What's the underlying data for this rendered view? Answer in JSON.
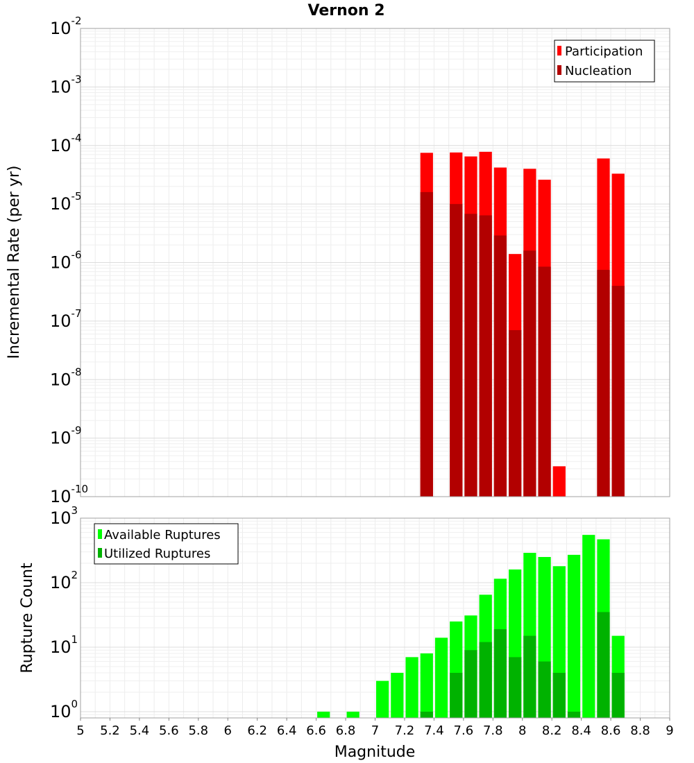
{
  "chart_data": [
    {
      "type": "bar",
      "id": "rate-panel",
      "title": "Vernon 2",
      "xlabel": "",
      "ylabel": "Incremental Rate (per yr)",
      "yscale": "log",
      "ylim": [
        1e-10,
        0.01
      ],
      "xlim": [
        5,
        9
      ],
      "bin_width": 0.1,
      "y_ticks": [
        {
          "base": "10",
          "exp": "-10",
          "value": 1e-10
        },
        {
          "base": "10",
          "exp": "-9",
          "value": 1e-09
        },
        {
          "base": "10",
          "exp": "-8",
          "value": 1e-08
        },
        {
          "base": "10",
          "exp": "-7",
          "value": 1e-07
        },
        {
          "base": "10",
          "exp": "-6",
          "value": 1e-06
        },
        {
          "base": "10",
          "exp": "-5",
          "value": 1e-05
        },
        {
          "base": "10",
          "exp": "-4",
          "value": 0.0001
        },
        {
          "base": "10",
          "exp": "-3",
          "value": 0.001
        },
        {
          "base": "10",
          "exp": "-2",
          "value": 0.01
        }
      ],
      "legend": {
        "placement": "top-right",
        "entries": [
          "Participation",
          "Nucleation"
        ]
      },
      "series": [
        {
          "name": "Participation",
          "color": "#ff0000",
          "x": [
            7.35,
            7.55,
            7.65,
            7.75,
            7.85,
            7.95,
            8.05,
            8.15,
            8.25,
            8.55,
            8.65
          ],
          "values": [
            7.5e-05,
            7.6e-05,
            6.5e-05,
            7.8e-05,
            4.2e-05,
            1.4e-06,
            4e-05,
            2.6e-05,
            3.3e-10,
            6e-05,
            3.3e-05
          ]
        },
        {
          "name": "Nucleation",
          "color": "#b20000",
          "x": [
            7.35,
            7.55,
            7.65,
            7.75,
            7.85,
            7.95,
            8.05,
            8.15,
            8.55,
            8.65
          ],
          "values": [
            1.6e-05,
            1e-05,
            6.8e-06,
            6.4e-06,
            2.9e-06,
            7e-08,
            1.6e-06,
            8.5e-07,
            7.5e-07,
            4e-07
          ]
        }
      ]
    },
    {
      "type": "bar",
      "id": "count-panel",
      "title": "",
      "xlabel": "Magnitude",
      "ylabel": "Rupture Count",
      "yscale": "log",
      "ylim": [
        0.8,
        1000
      ],
      "xlim": [
        5,
        9
      ],
      "bin_width": 0.1,
      "x_ticks": [
        "5",
        "5.2",
        "5.4",
        "5.6",
        "5.8",
        "6",
        "6.2",
        "6.4",
        "6.6",
        "6.8",
        "7",
        "7.2",
        "7.4",
        "7.6",
        "7.8",
        "8",
        "8.2",
        "8.4",
        "8.6",
        "8.8",
        "9"
      ],
      "y_ticks": [
        {
          "base": "10",
          "exp": "0",
          "value": 1
        },
        {
          "base": "10",
          "exp": "1",
          "value": 10
        },
        {
          "base": "10",
          "exp": "2",
          "value": 100
        },
        {
          "base": "10",
          "exp": "3",
          "value": 1000
        }
      ],
      "legend": {
        "placement": "top-left",
        "entries": [
          "Available Ruptures",
          "Utilized Ruptures"
        ]
      },
      "series": [
        {
          "name": "Available Ruptures",
          "color": "#00ff00",
          "x": [
            6.65,
            6.85,
            7.05,
            7.15,
            7.25,
            7.35,
            7.45,
            7.55,
            7.65,
            7.75,
            7.85,
            7.95,
            8.05,
            8.15,
            8.25,
            8.35,
            8.45,
            8.55,
            8.65
          ],
          "values": [
            1,
            1,
            3,
            4,
            7,
            8,
            14,
            25,
            31,
            65,
            115,
            160,
            290,
            250,
            180,
            270,
            550,
            470,
            15
          ]
        },
        {
          "name": "Utilized Ruptures",
          "color": "#00b200",
          "x": [
            7.35,
            7.55,
            7.65,
            7.75,
            7.85,
            7.95,
            8.05,
            8.15,
            8.25,
            8.35,
            8.55,
            8.65
          ],
          "values": [
            1,
            4,
            9,
            12,
            19,
            7,
            15,
            6,
            4,
            1,
            35,
            4
          ]
        }
      ]
    }
  ]
}
